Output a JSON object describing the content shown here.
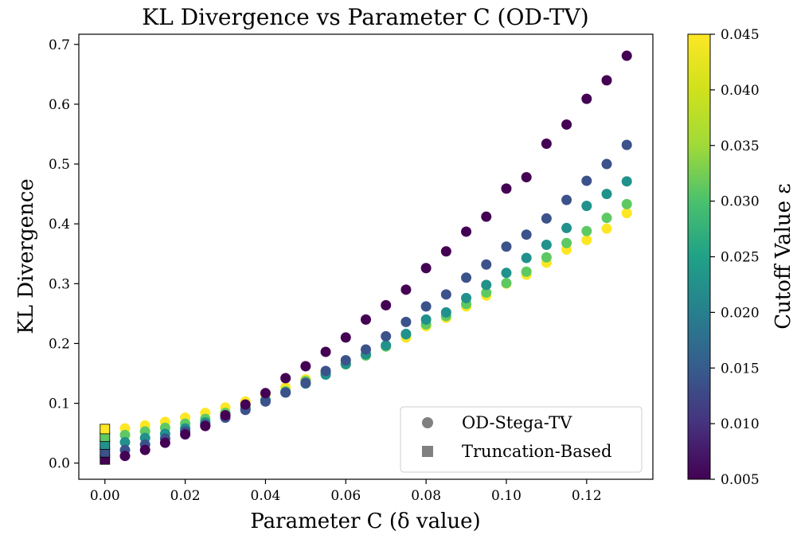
{
  "chart_data": {
    "type": "scatter",
    "title": "KL Divergence vs Parameter C (OD-TV)",
    "xlabel": "Parameter C (δ value)",
    "ylabel": "KL Divergence",
    "xlim": [
      -0.0065,
      0.1365
    ],
    "ylim": [
      -0.027,
      0.717
    ],
    "xticks": [
      0.0,
      0.02,
      0.04,
      0.06,
      0.08,
      0.1,
      0.12
    ],
    "xtick_labels": [
      "0.00",
      "0.02",
      "0.04",
      "0.06",
      "0.08",
      "0.10",
      "0.12"
    ],
    "yticks": [
      0.0,
      0.1,
      0.2,
      0.3,
      0.4,
      0.5,
      0.6,
      0.7
    ],
    "ytick_labels": [
      "0.0",
      "0.1",
      "0.2",
      "0.3",
      "0.4",
      "0.5",
      "0.6",
      "0.7"
    ],
    "x": [
      0.005,
      0.01,
      0.015,
      0.02,
      0.025,
      0.03,
      0.035,
      0.04,
      0.045,
      0.05,
      0.055,
      0.06,
      0.065,
      0.07,
      0.075,
      0.08,
      0.085,
      0.09,
      0.095,
      0.1,
      0.105,
      0.11,
      0.115,
      0.12,
      0.125,
      0.13
    ],
    "colorbar": {
      "label": "Cutoff Value ε",
      "range": [
        0.005,
        0.045
      ],
      "ticks": [
        0.005,
        0.01,
        0.015,
        0.02,
        0.025,
        0.03,
        0.035,
        0.04,
        0.045
      ],
      "tick_labels": [
        "0.005",
        "0.010",
        "0.015",
        "0.020",
        "0.025",
        "0.030",
        "0.035",
        "0.040",
        "0.045"
      ],
      "colormap": "viridis"
    },
    "legend": {
      "position": "bottom-right",
      "entries": [
        {
          "label": "OD-Stega-TV",
          "marker": "circle"
        },
        {
          "label": "Truncation-Based",
          "marker": "square"
        }
      ]
    },
    "series": [
      {
        "name": "ε=0.005",
        "epsilon": 0.005,
        "color": "#440154",
        "values": [
          0.012,
          0.022,
          0.034,
          0.048,
          0.062,
          0.08,
          0.098,
          0.117,
          0.142,
          0.162,
          0.186,
          0.21,
          0.24,
          0.264,
          0.29,
          0.326,
          0.354,
          0.387,
          0.412,
          0.459,
          0.478,
          0.534,
          0.566,
          0.609,
          0.64,
          0.681
        ]
      },
      {
        "name": "ε=0.015",
        "epsilon": 0.015,
        "color": "#3b528b",
        "values": [
          0.022,
          0.031,
          0.041,
          0.053,
          0.064,
          0.076,
          0.089,
          0.103,
          0.118,
          0.134,
          0.154,
          0.172,
          0.19,
          0.212,
          0.236,
          0.262,
          0.282,
          0.31,
          0.332,
          0.362,
          0.382,
          0.409,
          0.44,
          0.472,
          0.5,
          0.532
        ]
      },
      {
        "name": "ε=0.025",
        "epsilon": 0.025,
        "color": "#21918c",
        "values": [
          0.035,
          0.042,
          0.049,
          0.058,
          0.068,
          0.079,
          0.091,
          0.105,
          0.118,
          0.133,
          0.148,
          0.166,
          0.182,
          0.197,
          0.216,
          0.24,
          0.252,
          0.276,
          0.298,
          0.318,
          0.343,
          0.365,
          0.393,
          0.43,
          0.45,
          0.471
        ]
      },
      {
        "name": "ε=0.035",
        "epsilon": 0.035,
        "color": "#5ec962",
        "values": [
          0.047,
          0.053,
          0.059,
          0.066,
          0.074,
          0.084,
          0.094,
          0.106,
          0.12,
          0.137,
          0.15,
          0.165,
          0.18,
          0.195,
          0.215,
          0.232,
          0.246,
          0.266,
          0.285,
          0.301,
          0.32,
          0.344,
          0.368,
          0.388,
          0.41,
          0.433
        ]
      },
      {
        "name": "ε=0.045",
        "epsilon": 0.045,
        "color": "#fde725",
        "values": [
          0.058,
          0.063,
          0.069,
          0.076,
          0.084,
          0.093,
          0.103,
          0.115,
          0.127,
          0.14,
          0.152,
          0.166,
          0.18,
          0.195,
          0.21,
          0.229,
          0.243,
          0.262,
          0.28,
          0.3,
          0.315,
          0.335,
          0.357,
          0.373,
          0.392,
          0.418
        ]
      }
    ],
    "truncation_based": {
      "x": 0.0,
      "epsilons": [
        0.005,
        0.015,
        0.025,
        0.035,
        0.045
      ],
      "colors": [
        "#440154",
        "#3b528b",
        "#21918c",
        "#5ec962",
        "#fde725"
      ],
      "values": [
        0.006,
        0.018,
        0.031,
        0.044,
        0.057
      ]
    }
  }
}
